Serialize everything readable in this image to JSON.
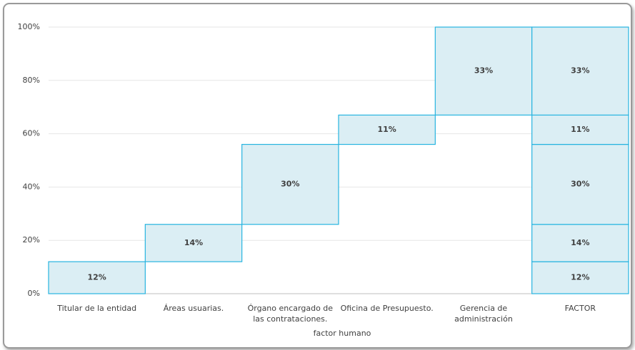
{
  "chart_data": {
    "type": "waterfall",
    "categories": [
      "Titular de la entidad",
      "Áreas usuarias.",
      "Órgano encargado de las contrataciones.",
      "Oficina de Presupuesto.",
      "Gerencia de administración"
    ],
    "values": [
      12,
      14,
      30,
      11,
      33
    ],
    "value_labels": [
      "12%",
      "14%",
      "30%",
      "11%",
      "33%"
    ],
    "total_category": "FACTOR",
    "x_label": "factor humano",
    "color": "#dbeef4",
    "edge_color": "#27b4e0",
    "ylim": [
      0,
      100
    ],
    "yticks": [
      {
        "value": 0,
        "label": "0%"
      },
      {
        "value": 20,
        "label": "20%"
      },
      {
        "value": 40,
        "label": "40%"
      },
      {
        "value": 60,
        "label": "60%"
      },
      {
        "value": 80,
        "label": "80%"
      },
      {
        "value": 100,
        "label": "100%"
      }
    ],
    "grid": true
  }
}
